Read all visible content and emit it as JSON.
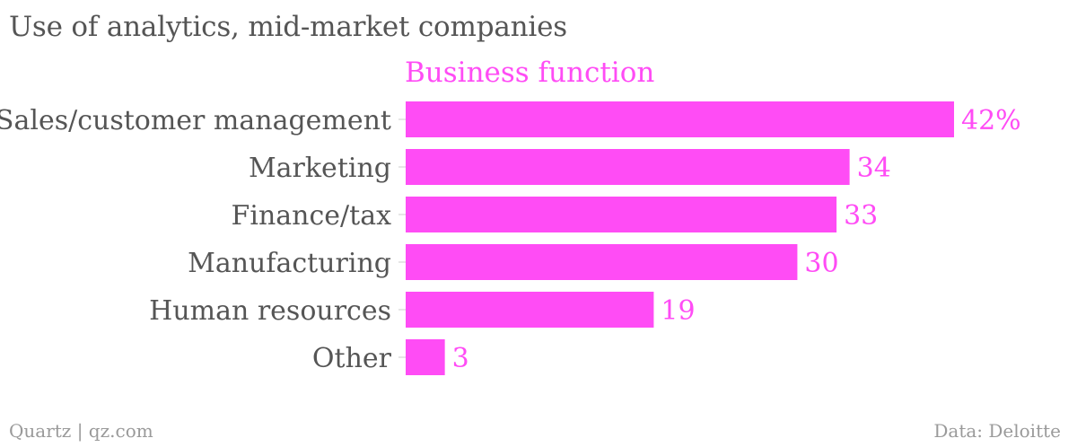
{
  "header": {
    "title": "Use of analytics, mid-market companies",
    "series_label": "Business function"
  },
  "chart_data": {
    "type": "bar",
    "orientation": "horizontal",
    "title": "Use of analytics, mid-market companies",
    "categories": [
      "Sales/customer management",
      "Marketing",
      "Finance/tax",
      "Manufacturing",
      "Human resources",
      "Other"
    ],
    "series": [
      {
        "name": "Business function",
        "values": [
          42,
          34,
          33,
          30,
          19,
          3
        ],
        "value_labels": [
          "42%",
          "34",
          "33",
          "30",
          "19",
          "3"
        ]
      }
    ],
    "xlim": [
      0,
      42
    ],
    "grid": false,
    "bar_color": "#ff4cf5",
    "label_color": "#ff4cf5",
    "category_label_color": "#555555"
  },
  "footer": {
    "left": "Quartz | qz.com",
    "right": "Data: Deloitte"
  }
}
